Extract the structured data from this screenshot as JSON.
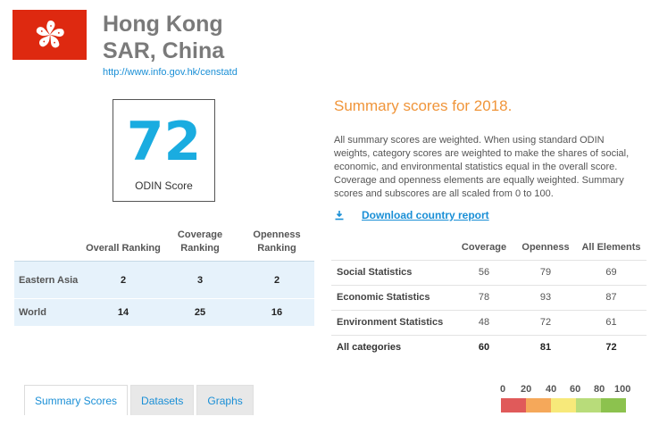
{
  "header": {
    "title_line1": "Hong Kong",
    "title_line2": "SAR, China",
    "url": "http://www.info.gov.hk/censtatd",
    "flag_icon": "hong-kong-flag-icon"
  },
  "score": {
    "value": "72",
    "label": "ODIN Score"
  },
  "ranking": {
    "headers": [
      "",
      "Overall Ranking",
      "Coverage Ranking",
      "Openness Ranking"
    ],
    "rows": [
      {
        "region": "Eastern Asia",
        "overall": "2",
        "coverage": "3",
        "openness": "2"
      },
      {
        "region": "World",
        "overall": "14",
        "coverage": "25",
        "openness": "16"
      }
    ]
  },
  "summary": {
    "title": "Summary scores for 2018.",
    "description": "All summary scores are weighted. When using standard ODIN weights, category scores are weighted to make the shares of social, economic, and environmental statistics equal in the overall score. Coverage and openness elements are equally weighted. Summary scores and subscores are all scaled from 0 to 100.",
    "download_label": "Download country report",
    "download_icon": "download-icon",
    "headers": [
      "",
      "Coverage",
      "Openness",
      "All Elements"
    ],
    "rows": [
      {
        "category": "Social Statistics",
        "coverage": "56",
        "openness": "79",
        "all": "69"
      },
      {
        "category": "Economic Statistics",
        "coverage": "78",
        "openness": "93",
        "all": "87"
      },
      {
        "category": "Environment Statistics",
        "coverage": "48",
        "openness": "72",
        "all": "61"
      },
      {
        "category": "All categories",
        "coverage": "60",
        "openness": "81",
        "all": "72"
      }
    ]
  },
  "tabs": [
    {
      "label": "Summary Scores",
      "active": true
    },
    {
      "label": "Datasets",
      "active": false
    },
    {
      "label": "Graphs",
      "active": false
    }
  ],
  "legend": {
    "labels": [
      "0",
      "20",
      "40",
      "60",
      "80",
      "100"
    ],
    "colors": [
      "#e05a5a",
      "#f5a85a",
      "#f7e97a",
      "#b8dc7a",
      "#8cc24e"
    ]
  }
}
